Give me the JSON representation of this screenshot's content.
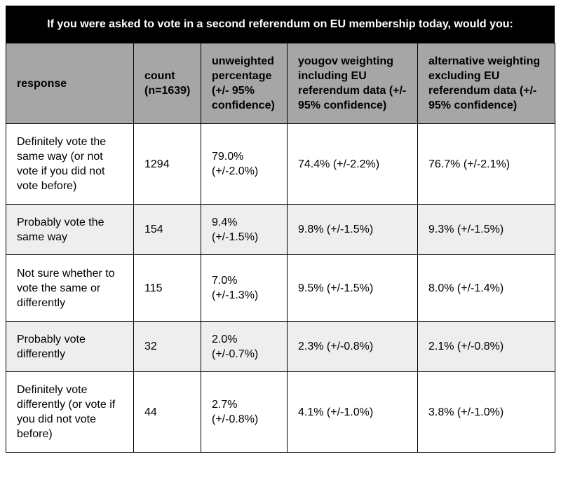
{
  "title": "If you were asked to vote in a second referendum on EU membership today, would you:",
  "headers": [
    "response",
    "count (n=1639)",
    "unweighted percentage (+/- 95% confidence)",
    "yougov weighting including EU referendum data (+/- 95% confidence)",
    "alternative weighting excluding EU referendum data (+/- 95% confidence)"
  ],
  "rows": [
    {
      "response": "Definitely vote the same way (or not vote if you did not vote before)",
      "count": "1294",
      "unweighted": "79.0% (+/-2.0%)",
      "yougov": "74.4% (+/-2.2%)",
      "alternative": "76.7% (+/-2.1%)"
    },
    {
      "response": "Probably vote the same way",
      "count": "154",
      "unweighted": "9.4% (+/-1.5%)",
      "yougov": "9.8% (+/-1.5%)",
      "alternative": "9.3% (+/-1.5%)"
    },
    {
      "response": "Not sure whether to vote the same or differently",
      "count": "115",
      "unweighted": "7.0% (+/-1.3%)",
      "yougov": "9.5% (+/-1.5%)",
      "alternative": "8.0% (+/-1.4%)"
    },
    {
      "response": "Probably vote differently",
      "count": "32",
      "unweighted": "2.0% (+/-0.7%)",
      "yougov": "2.3% (+/-0.8%)",
      "alternative": "2.1% (+/-0.8%)"
    },
    {
      "response": "Definitely vote differently (or vote if you did not vote before)",
      "count": "44",
      "unweighted": "2.7% (+/-0.8%)",
      "yougov": "4.1% (+/-1.0%)",
      "alternative": "3.8% (+/-1.0%)"
    }
  ]
}
